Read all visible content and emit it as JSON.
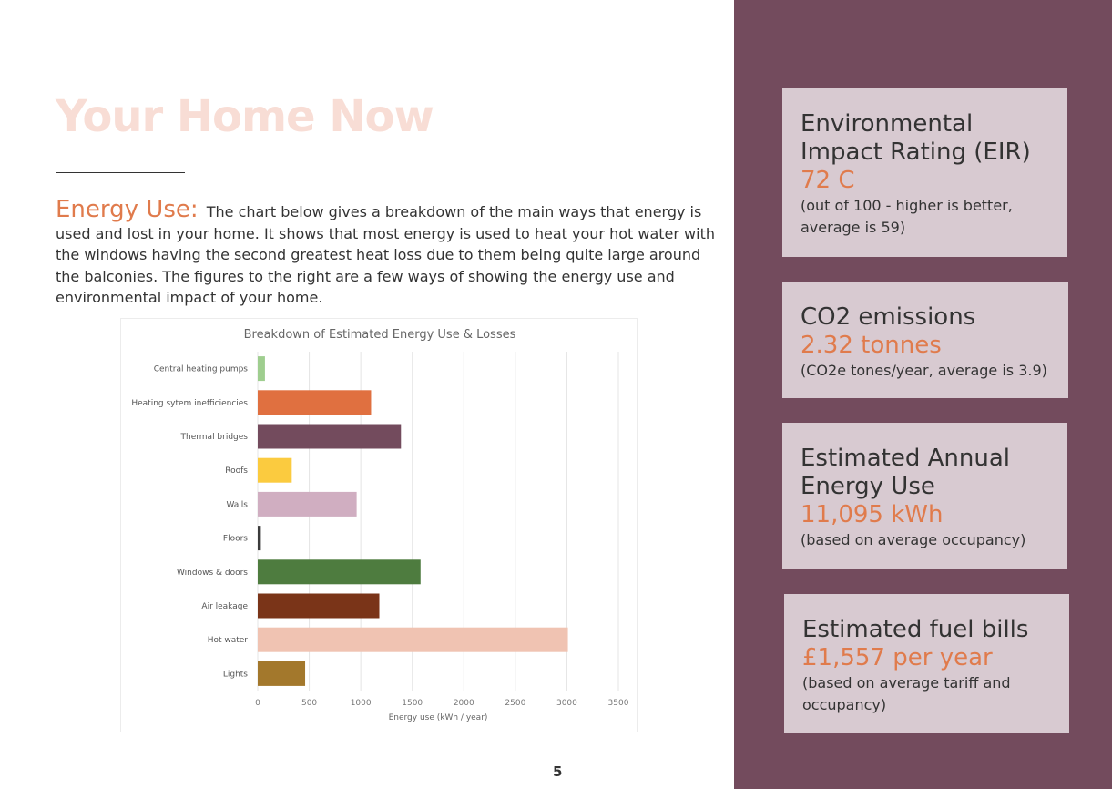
{
  "page": {
    "title": "Your Home Now",
    "intro_lead": "Energy Use:",
    "intro_text": "The chart below gives a breakdown of the main ways that energy is used and lost in your home. It shows that most energy is used to heat your hot water with the windows having the second greatest heat loss due to them being quite large around the balconies. The figures to the right are a few ways of showing the energy use and environmental impact of your home.",
    "page_number": "5"
  },
  "cards": [
    {
      "label": "Environmental Impact Rating (EIR)",
      "value": "72 C",
      "note": "(out of 100 - higher is better, average is 59)"
    },
    {
      "label": "CO2 emissions",
      "value": "2.32 tonnes",
      "note": "(CO2e tones/year, average is 3.9)"
    },
    {
      "label": "Estimated Annual Energy Use",
      "value": "11,095 kWh",
      "note": "(based on average occupancy)"
    },
    {
      "label": "Estimated fuel bills",
      "value": "£1,557 per year",
      "note": "(based on average tariff and occupancy)"
    }
  ],
  "colors": {
    "sidebar": "#734b5d",
    "accent": "#e07b4c",
    "card": "#d8cad1",
    "title": "#f8ddd5"
  },
  "chart_data": {
    "type": "bar",
    "orientation": "horizontal",
    "title": "Breakdown of Estimated Energy Use & Losses",
    "xlabel": "Energy use (kWh / year)",
    "ylabel": "",
    "xlim": [
      0,
      3500
    ],
    "xticks": [
      0,
      500,
      1000,
      1500,
      2000,
      2500,
      3000,
      3500
    ],
    "grid": "vertical",
    "categories": [
      "Central heating pumps",
      "Heating sytem inefficiencies",
      "Thermal bridges",
      "Roofs",
      "Walls",
      "Floors",
      "Windows & doors",
      "Air leakage",
      "Hot water",
      "Lights"
    ],
    "values": [
      70,
      1100,
      1390,
      330,
      960,
      30,
      1580,
      1180,
      3010,
      460
    ],
    "colors": [
      "#9fce8f",
      "#e07040",
      "#734b5d",
      "#fbcb3f",
      "#d0aec1",
      "#3b3b3b",
      "#4e7c3f",
      "#7a3418",
      "#f0c3b2",
      "#a3782c"
    ]
  }
}
